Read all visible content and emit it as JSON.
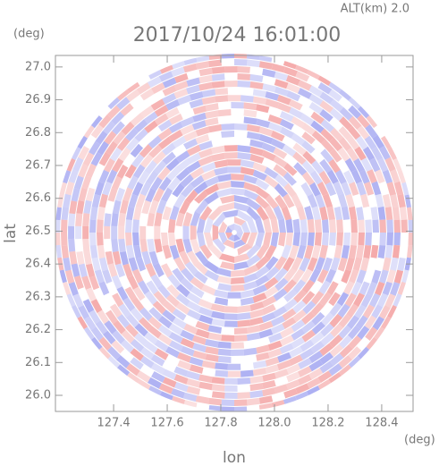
{
  "chart_data": {
    "type": "radar-ppi",
    "title": "2017/10/24 16:01:00",
    "annotation": "ALT(km) 2.0",
    "x_unit": "(deg)",
    "y_unit": "(deg)",
    "xlabel": "lon",
    "ylabel": "lat",
    "xlim": [
      127.183,
      128.517
    ],
    "ylim": [
      25.951,
      27.035
    ],
    "xticks": [
      127.4,
      127.6,
      127.8,
      {
        "value": 128.0,
        "label": "128.0"
      },
      128.2,
      128.4
    ],
    "yticks": [
      {
        "value": 26.0,
        "label": "26.0"
      },
      26.1,
      26.2,
      26.3,
      26.4,
      26.5,
      26.6,
      26.7,
      26.8,
      26.9,
      {
        "value": 27.0,
        "label": "27.0"
      }
    ],
    "colors": [
      "#f4a6a6",
      "#a9acf2"
    ]
  }
}
